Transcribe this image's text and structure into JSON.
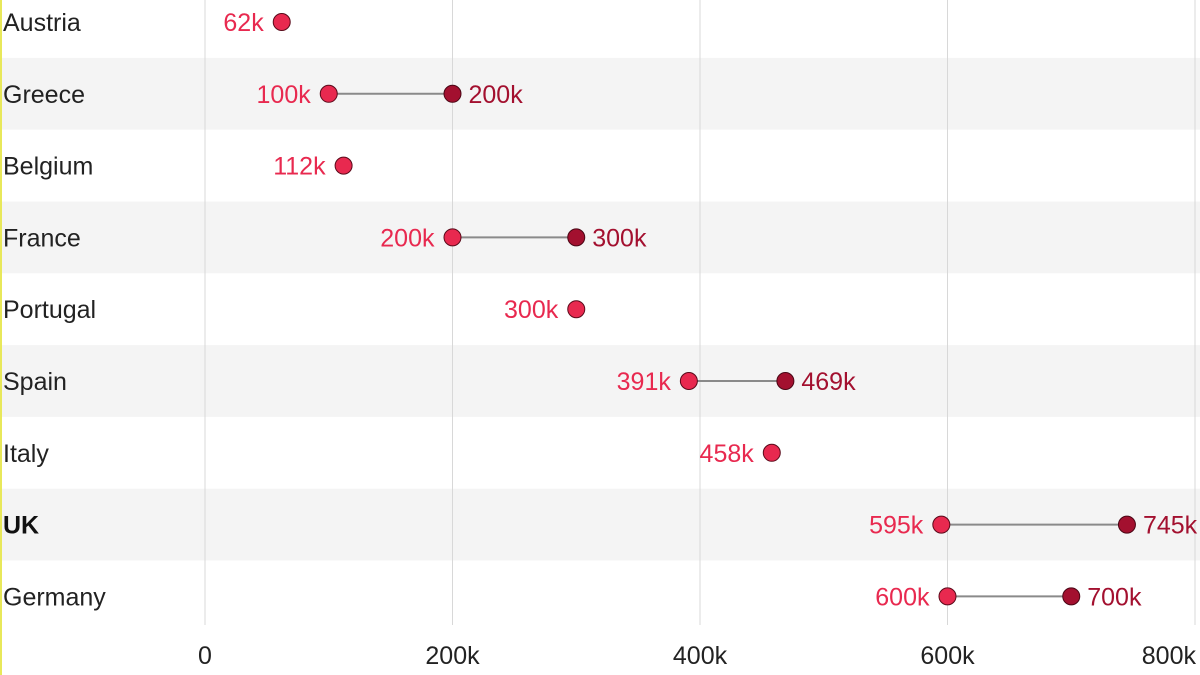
{
  "chart_data": {
    "type": "dumbbell",
    "title": "",
    "xlabel": "",
    "ylabel": "",
    "xlim": [
      0,
      800000
    ],
    "x_ticks": [
      {
        "value": 0,
        "label": "0"
      },
      {
        "value": 200000,
        "label": "200k"
      },
      {
        "value": 400000,
        "label": "400k"
      },
      {
        "value": 600000,
        "label": "600k"
      },
      {
        "value": 800000,
        "label": "800k"
      }
    ],
    "grid": true,
    "colors": {
      "low": "#e8294f",
      "high": "#a3102f",
      "connector": "#8a8a8a",
      "band": "#f4f4f4",
      "gridline": "#d8d8d8"
    },
    "rows": [
      {
        "category": "Austria",
        "bold": false,
        "low": 62000,
        "low_label": "62k",
        "high": null,
        "high_label": ""
      },
      {
        "category": "Greece",
        "bold": false,
        "low": 100000,
        "low_label": "100k",
        "high": 200000,
        "high_label": "200k"
      },
      {
        "category": "Belgium",
        "bold": false,
        "low": 112000,
        "low_label": "112k",
        "high": null,
        "high_label": ""
      },
      {
        "category": "France",
        "bold": false,
        "low": 200000,
        "low_label": "200k",
        "high": 300000,
        "high_label": "300k"
      },
      {
        "category": "Portugal",
        "bold": false,
        "low": 300000,
        "low_label": "300k",
        "high": null,
        "high_label": ""
      },
      {
        "category": "Spain",
        "bold": false,
        "low": 391000,
        "low_label": "391k",
        "high": 469000,
        "high_label": "469k"
      },
      {
        "category": "Italy",
        "bold": false,
        "low": 458000,
        "low_label": "458k",
        "high": null,
        "high_label": ""
      },
      {
        "category": "UK",
        "bold": true,
        "low": 595000,
        "low_label": "595k",
        "high": 745000,
        "high_label": "745k"
      },
      {
        "category": "Germany",
        "bold": false,
        "low": 600000,
        "low_label": "600k",
        "high": 700000,
        "high_label": "700k"
      }
    ]
  }
}
